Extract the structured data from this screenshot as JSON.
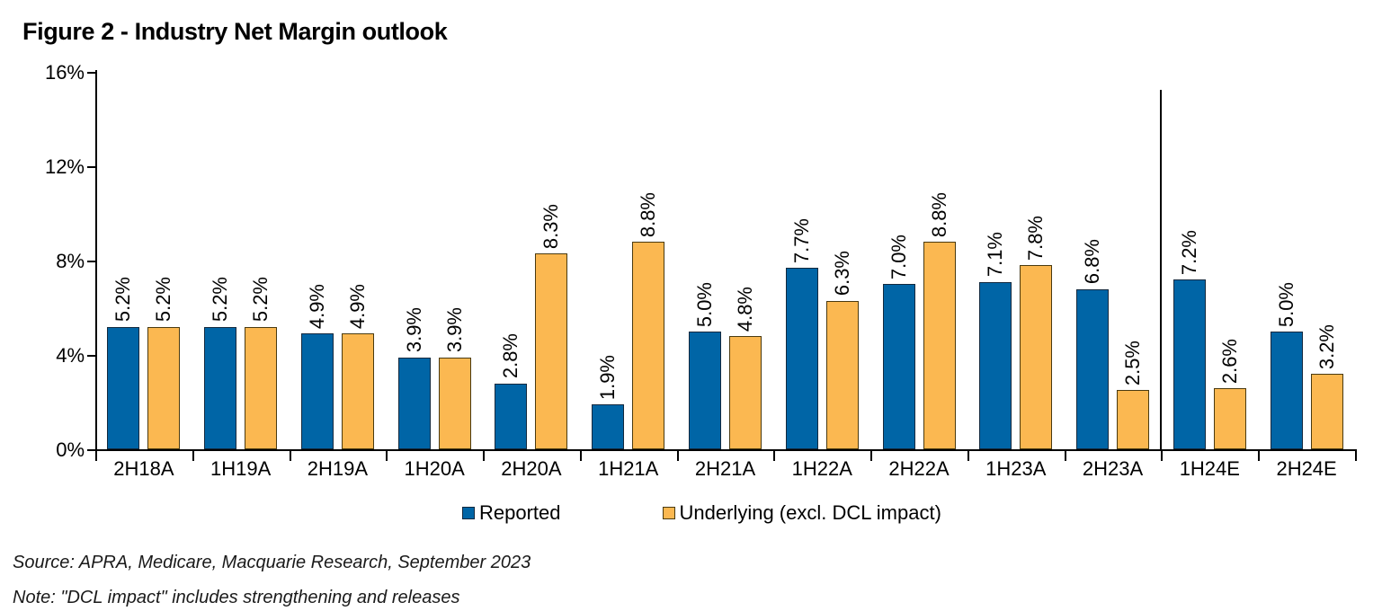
{
  "title": "Figure 2 - Industry Net Margin outlook",
  "chart_data": {
    "type": "bar",
    "title": "Figure 2 - Industry Net Margin outlook",
    "categories": [
      "2H18A",
      "1H19A",
      "2H19A",
      "1H20A",
      "2H20A",
      "1H21A",
      "2H21A",
      "1H22A",
      "2H22A",
      "1H23A",
      "2H23A",
      "1H24E",
      "2H24E"
    ],
    "series": [
      {
        "name": "Reported",
        "color": "#0065A6",
        "values": [
          5.2,
          5.2,
          4.9,
          3.9,
          2.8,
          1.9,
          5.0,
          7.7,
          7.0,
          7.1,
          6.8,
          7.2,
          5.0
        ],
        "labels": [
          "5.2%",
          "5.2%",
          "4.9%",
          "3.9%",
          "2.8%",
          "1.9%",
          "5.0%",
          "7.7%",
          "7.0%",
          "7.1%",
          "6.8%",
          "7.2%",
          "5.0%"
        ]
      },
      {
        "name": "Underlying (excl. DCL impact)",
        "color": "#FBB851",
        "values": [
          5.2,
          5.2,
          4.9,
          3.9,
          8.3,
          8.8,
          4.8,
          6.3,
          8.8,
          7.8,
          2.5,
          2.6,
          3.2
        ],
        "labels": [
          "5.2%",
          "5.2%",
          "4.9%",
          "3.9%",
          "8.3%",
          "8.8%",
          "4.8%",
          "6.3%",
          "8.8%",
          "7.8%",
          "2.5%",
          "2.6%",
          "3.2%"
        ]
      }
    ],
    "xlabel": "",
    "ylabel": "",
    "ylim": [
      0,
      16
    ],
    "yticks": [
      {
        "value": 0,
        "label": "0%"
      },
      {
        "value": 4,
        "label": "4%"
      },
      {
        "value": 8,
        "label": "8%"
      },
      {
        "value": 12,
        "label": "12%"
      },
      {
        "value": 16,
        "label": "16%"
      }
    ],
    "grid": false,
    "legend_position": "bottom-center",
    "value_label_rotation": 90,
    "divider": {
      "after_category": "2H23A",
      "boundary_index": 11
    }
  },
  "footer": {
    "source": "Source: APRA, Medicare, Macquarie Research, September 2023",
    "note": "Note: \"DCL impact\" includes strengthening and releases"
  }
}
